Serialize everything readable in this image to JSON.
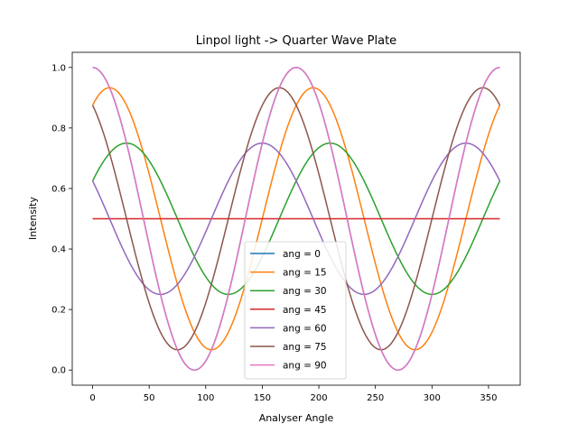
{
  "chart_data": {
    "type": "line",
    "title": "Linpol light -> Quarter Wave Plate",
    "xlabel": "Analyser Angle",
    "ylabel": "Intensity",
    "xlim": [
      -18,
      378
    ],
    "ylim": [
      -0.05,
      1.05
    ],
    "xticks": [
      0,
      50,
      100,
      150,
      200,
      250,
      300,
      350
    ],
    "yticks": [
      0.0,
      0.2,
      0.4,
      0.6,
      0.8,
      1.0
    ],
    "ytick_labels": [
      "0.0",
      "0.2",
      "0.4",
      "0.6",
      "0.8",
      "1.0"
    ],
    "grid": false,
    "legend_position": "lower-center",
    "x_range": [
      0,
      360
    ],
    "series": [
      {
        "name": "ang = 0",
        "color": "#1f77b4",
        "mean": 0.5,
        "amplitude": 0.5,
        "peak_x": 0
      },
      {
        "name": "ang = 15",
        "color": "#ff7f0e",
        "mean": 0.5,
        "amplitude": 0.433,
        "peak_x": 15
      },
      {
        "name": "ang = 30",
        "color": "#2ca02c",
        "mean": 0.5,
        "amplitude": 0.25,
        "peak_x": 30
      },
      {
        "name": "ang = 45",
        "color": "#d62728",
        "mean": 0.5,
        "amplitude": 0.0,
        "peak_x": 0
      },
      {
        "name": "ang = 60",
        "color": "#9467bd",
        "mean": 0.5,
        "amplitude": 0.25,
        "peak_x": 150
      },
      {
        "name": "ang = 75",
        "color": "#8c564b",
        "mean": 0.5,
        "amplitude": 0.433,
        "peak_x": 165
      },
      {
        "name": "ang = 90",
        "color": "#e377c2",
        "mean": 0.5,
        "amplitude": 0.5,
        "peak_x": 0
      }
    ]
  }
}
